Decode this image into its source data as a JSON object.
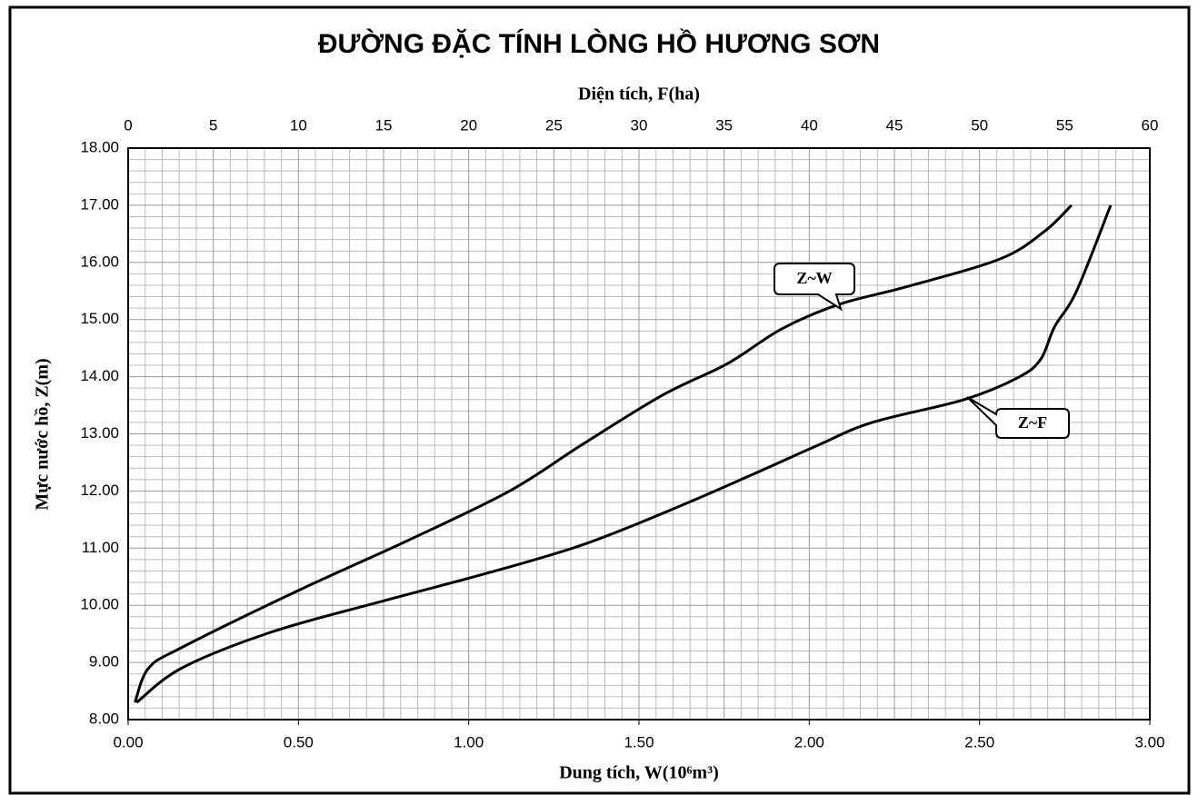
{
  "chart_data": {
    "type": "line",
    "title": "ĐƯỜNG ĐẶC TÍNH LÒNG HỒ HƯƠNG SƠN",
    "x_label": "Dung tích, W(10⁶m³)",
    "x2_label": "Diện tích, F(ha)",
    "y_label": "Mực nước hồ, Z(m)",
    "xlim": [
      0,
      3
    ],
    "xticks": [
      {
        "value": 0,
        "label": "0.00"
      },
      {
        "value": 0.5,
        "label": "0.50"
      },
      {
        "value": 1,
        "label": "1.00"
      },
      {
        "value": 1.5,
        "label": "1.50"
      },
      {
        "value": 2,
        "label": "2.00"
      },
      {
        "value": 2.5,
        "label": "2.50"
      },
      {
        "value": 3,
        "label": "3.00"
      }
    ],
    "x2lim": [
      0,
      60
    ],
    "x2ticks": [
      0,
      5,
      10,
      15,
      20,
      25,
      30,
      35,
      40,
      45,
      50,
      55,
      60
    ],
    "ylim": [
      8,
      18
    ],
    "yticks": [
      {
        "value": 8,
        "label": "8.00"
      },
      {
        "value": 9,
        "label": "9.00"
      },
      {
        "value": 10,
        "label": "10.00"
      },
      {
        "value": 11,
        "label": "11.00"
      },
      {
        "value": 12,
        "label": "12.00"
      },
      {
        "value": 13,
        "label": "13.00"
      },
      {
        "value": 14,
        "label": "14.00"
      },
      {
        "value": 15,
        "label": "15.00"
      },
      {
        "value": 16,
        "label": "16.00"
      },
      {
        "value": 17,
        "label": "17.00"
      },
      {
        "value": 18,
        "label": "18.00"
      }
    ],
    "grid": true,
    "series": [
      {
        "name": "Z~W",
        "color": "#000000",
        "axis": "x",
        "x": [
          0.02,
          0.06,
          0.16,
          0.5,
          0.82,
          1.12,
          1.33,
          1.57,
          1.76,
          1.92,
          2.09,
          2.29,
          2.56,
          2.69,
          2.77
        ],
        "values": [
          8.3,
          8.9,
          9.27,
          10.26,
          11.13,
          12.0,
          12.8,
          13.68,
          14.23,
          14.84,
          15.27,
          15.58,
          16.06,
          16.54,
          17.0
        ]
      },
      {
        "name": "Z~F",
        "color": "#000000",
        "axis": "x2",
        "x": [
          0.5,
          3.2,
          8.5,
          14.9,
          21.3,
          26.6,
          31.4,
          36.3,
          40.5,
          43.7,
          49.1,
          52.3,
          53.6,
          54.4,
          55.7,
          57.7
        ],
        "values": [
          8.3,
          8.91,
          9.54,
          10.07,
          10.58,
          11.05,
          11.61,
          12.24,
          12.8,
          13.2,
          13.6,
          13.99,
          14.31,
          14.87,
          15.5,
          17.0
        ]
      }
    ]
  }
}
